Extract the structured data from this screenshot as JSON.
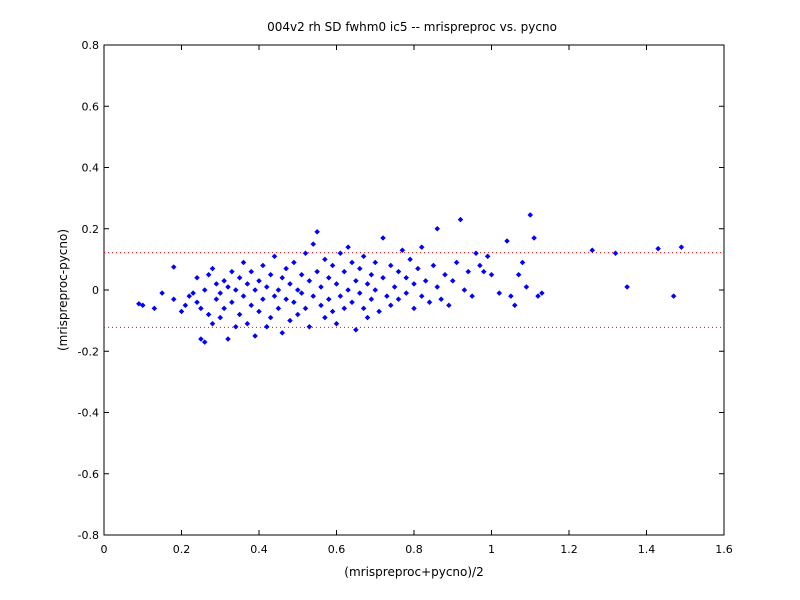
{
  "chart_data": {
    "type": "scatter",
    "title": "004v2 rh SD fwhm0 ic5 -- mrispreproc vs. pycno",
    "xlabel": "(mrispreproc+pycno)/2",
    "ylabel": "(mrispreproc-pycno)",
    "xlim": [
      0,
      1.6
    ],
    "ylim": [
      -0.8,
      0.8
    ],
    "x_ticks": [
      0,
      0.2,
      0.4,
      0.6,
      0.8,
      1,
      1.2,
      1.4,
      1.6
    ],
    "x_tick_labels": [
      "0",
      "0.2",
      "0.4",
      "0.6",
      "0.8",
      "1",
      "1.2",
      "1.4",
      "1.6"
    ],
    "y_ticks": [
      -0.8,
      -0.6,
      -0.4,
      -0.2,
      0,
      0.2,
      0.4,
      0.6,
      0.8
    ],
    "y_tick_labels": [
      "-0.8",
      "-0.6",
      "-0.4",
      "-0.2",
      "0",
      "0.2",
      "0.4",
      "0.6",
      "0.8"
    ],
    "grid": false,
    "legend": "none",
    "marker_color": "#0000ff",
    "reference_line_color": "#ff0000",
    "reference_lines_y": [
      0.122,
      -0.122
    ],
    "series": [
      {
        "points": [
          [
            0.09,
            -0.045
          ],
          [
            0.1,
            -0.05
          ],
          [
            0.13,
            -0.06
          ],
          [
            0.15,
            -0.01
          ],
          [
            0.18,
            0.075
          ],
          [
            0.18,
            -0.03
          ],
          [
            0.2,
            -0.07
          ],
          [
            0.21,
            -0.05
          ],
          [
            0.22,
            -0.02
          ],
          [
            0.23,
            -0.01
          ],
          [
            0.24,
            0.04
          ],
          [
            0.24,
            -0.04
          ],
          [
            0.25,
            -0.06
          ],
          [
            0.25,
            -0.16
          ],
          [
            0.26,
            -0.17
          ],
          [
            0.26,
            0.0
          ],
          [
            0.27,
            0.05
          ],
          [
            0.27,
            -0.08
          ],
          [
            0.28,
            -0.11
          ],
          [
            0.28,
            0.07
          ],
          [
            0.29,
            -0.03
          ],
          [
            0.29,
            0.02
          ],
          [
            0.3,
            -0.09
          ],
          [
            0.3,
            -0.01
          ],
          [
            0.31,
            0.03
          ],
          [
            0.31,
            -0.06
          ],
          [
            0.32,
            -0.16
          ],
          [
            0.32,
            0.01
          ],
          [
            0.33,
            0.06
          ],
          [
            0.33,
            -0.04
          ],
          [
            0.34,
            -0.12
          ],
          [
            0.34,
            0.0
          ],
          [
            0.35,
            0.04
          ],
          [
            0.35,
            -0.08
          ],
          [
            0.36,
            -0.02
          ],
          [
            0.36,
            0.09
          ],
          [
            0.37,
            -0.11
          ],
          [
            0.37,
            0.02
          ],
          [
            0.38,
            -0.05
          ],
          [
            0.38,
            0.06
          ],
          [
            0.39,
            -0.15
          ],
          [
            0.39,
            0.0
          ],
          [
            0.4,
            0.03
          ],
          [
            0.4,
            -0.07
          ],
          [
            0.41,
            0.08
          ],
          [
            0.41,
            -0.03
          ],
          [
            0.42,
            -0.12
          ],
          [
            0.42,
            0.01
          ],
          [
            0.43,
            0.05
          ],
          [
            0.43,
            -0.09
          ],
          [
            0.44,
            -0.02
          ],
          [
            0.44,
            0.11
          ],
          [
            0.45,
            0.0
          ],
          [
            0.45,
            -0.06
          ],
          [
            0.46,
            0.04
          ],
          [
            0.46,
            -0.14
          ],
          [
            0.47,
            -0.03
          ],
          [
            0.47,
            0.07
          ],
          [
            0.48,
            0.02
          ],
          [
            0.48,
            -0.1
          ],
          [
            0.49,
            -0.04
          ],
          [
            0.49,
            0.09
          ],
          [
            0.5,
            0.0
          ],
          [
            0.5,
            -0.08
          ],
          [
            0.51,
            0.05
          ],
          [
            0.51,
            -0.01
          ],
          [
            0.52,
            0.12
          ],
          [
            0.52,
            -0.06
          ],
          [
            0.53,
            0.03
          ],
          [
            0.53,
            -0.12
          ],
          [
            0.54,
            0.15
          ],
          [
            0.54,
            -0.02
          ],
          [
            0.55,
            0.19
          ],
          [
            0.55,
            0.06
          ],
          [
            0.56,
            -0.05
          ],
          [
            0.56,
            0.01
          ],
          [
            0.57,
            0.1
          ],
          [
            0.57,
            -0.09
          ],
          [
            0.58,
            0.04
          ],
          [
            0.58,
            -0.03
          ],
          [
            0.59,
            0.08
          ],
          [
            0.59,
            -0.07
          ],
          [
            0.6,
            0.02
          ],
          [
            0.6,
            -0.11
          ],
          [
            0.61,
            0.12
          ],
          [
            0.61,
            -0.02
          ],
          [
            0.62,
            0.06
          ],
          [
            0.62,
            -0.06
          ],
          [
            0.63,
            0.14
          ],
          [
            0.63,
            0.0
          ],
          [
            0.64,
            -0.04
          ],
          [
            0.64,
            0.09
          ],
          [
            0.65,
            0.03
          ],
          [
            0.65,
            -0.13
          ],
          [
            0.66,
            0.07
          ],
          [
            0.66,
            -0.01
          ],
          [
            0.67,
            0.11
          ],
          [
            0.67,
            -0.06
          ],
          [
            0.68,
            0.02
          ],
          [
            0.68,
            -0.09
          ],
          [
            0.69,
            0.05
          ],
          [
            0.69,
            -0.03
          ],
          [
            0.7,
            0.09
          ],
          [
            0.7,
            0.0
          ],
          [
            0.71,
            -0.07
          ],
          [
            0.72,
            0.17
          ],
          [
            0.72,
            0.04
          ],
          [
            0.73,
            -0.02
          ],
          [
            0.74,
            0.08
          ],
          [
            0.74,
            -0.05
          ],
          [
            0.75,
            0.01
          ],
          [
            0.76,
            0.06
          ],
          [
            0.76,
            -0.03
          ],
          [
            0.77,
            0.13
          ],
          [
            0.78,
            -0.01
          ],
          [
            0.78,
            0.04
          ],
          [
            0.79,
            0.1
          ],
          [
            0.8,
            -0.06
          ],
          [
            0.8,
            0.02
          ],
          [
            0.81,
            0.07
          ],
          [
            0.82,
            0.14
          ],
          [
            0.82,
            -0.02
          ],
          [
            0.83,
            0.03
          ],
          [
            0.84,
            -0.04
          ],
          [
            0.85,
            0.08
          ],
          [
            0.86,
            0.01
          ],
          [
            0.86,
            0.2
          ],
          [
            0.87,
            -0.03
          ],
          [
            0.88,
            0.05
          ],
          [
            0.89,
            -0.05
          ],
          [
            0.9,
            0.03
          ],
          [
            0.91,
            0.09
          ],
          [
            0.92,
            0.23
          ],
          [
            0.93,
            0.0
          ],
          [
            0.94,
            0.06
          ],
          [
            0.95,
            -0.02
          ],
          [
            0.96,
            0.12
          ],
          [
            0.97,
            0.08
          ],
          [
            0.98,
            0.06
          ],
          [
            0.99,
            0.11
          ],
          [
            1.0,
            0.05
          ],
          [
            1.02,
            -0.01
          ],
          [
            1.04,
            0.16
          ],
          [
            1.05,
            -0.02
          ],
          [
            1.06,
            -0.05
          ],
          [
            1.07,
            0.05
          ],
          [
            1.08,
            0.09
          ],
          [
            1.09,
            0.01
          ],
          [
            1.1,
            0.245
          ],
          [
            1.11,
            0.17
          ],
          [
            1.12,
            -0.02
          ],
          [
            1.13,
            -0.01
          ],
          [
            1.26,
            0.13
          ],
          [
            1.32,
            0.12
          ],
          [
            1.35,
            0.01
          ],
          [
            1.43,
            0.135
          ],
          [
            1.47,
            -0.02
          ],
          [
            1.49,
            0.14
          ]
        ]
      }
    ]
  }
}
